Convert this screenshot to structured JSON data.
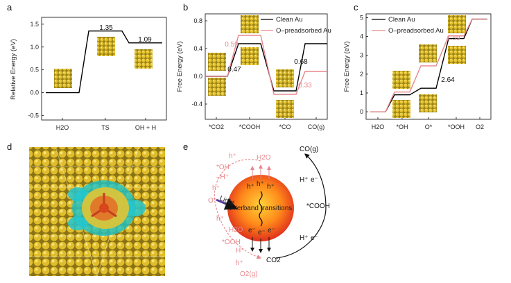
{
  "panel_labels": [
    "a",
    "b",
    "c",
    "d",
    "e"
  ],
  "chart_data": [
    {
      "id": "a",
      "type": "line",
      "ylabel": "Relative Energy (eV)",
      "ylim": [
        -0.6,
        1.65
      ],
      "yticks": [
        "-0.5",
        "0.0",
        "0.5",
        "1.0",
        "1.5"
      ],
      "categories": [
        "H2O",
        "TS",
        "OH + H"
      ],
      "series": [
        {
          "name": "Clean Au",
          "values": [
            0.0,
            1.35,
            1.09
          ],
          "color": "#000000"
        }
      ],
      "annotations": [
        "1.35",
        "1.09"
      ]
    },
    {
      "id": "b",
      "type": "line",
      "ylabel": "Free Energy (eV)",
      "ylim": [
        -0.62,
        0.9
      ],
      "yticks": [
        "-0.4",
        "0.0",
        "0.4",
        "0.8"
      ],
      "categories": [
        "*CO2",
        "*COOH",
        "*CO",
        "CO(g)"
      ],
      "legend": [
        "Clean Au",
        "O–preadsorbed Au"
      ],
      "series": [
        {
          "name": "Clean Au",
          "values": [
            0.0,
            0.47,
            -0.21,
            0.47
          ],
          "color": "#000000"
        },
        {
          "name": "O–preadsorbed Au",
          "values": [
            0.0,
            0.59,
            -0.26,
            0.07
          ],
          "color": "#e8868b"
        }
      ],
      "annotations": {
        "black_step1": "0.47",
        "pink_step1": "0.59",
        "black_step3": "0.68",
        "pink_step3": "0.33"
      }
    },
    {
      "id": "c",
      "type": "line",
      "ylabel": "Free Energy (eV)",
      "ylim": [
        -0.4,
        5.2
      ],
      "yticks": [
        "0",
        "1",
        "2",
        "3",
        "4",
        "5"
      ],
      "categories": [
        "H2O",
        "*OH",
        "O*",
        "*OOH",
        "O2"
      ],
      "legend": [
        "Clean Au",
        "O–preadsorbed Au"
      ],
      "series": [
        {
          "name": "Clean Au",
          "values": [
            0.0,
            0.9,
            1.25,
            3.89,
            4.92
          ],
          "color": "#000000"
        },
        {
          "name": "O–preadsorbed Au",
          "values": [
            0.0,
            1.05,
            2.44,
            4.03,
            4.92
          ],
          "color": "#e8868b"
        }
      ],
      "annotations": {
        "black_step3": "2.64",
        "pink_step3": "1.59"
      }
    }
  ],
  "mechanism": {
    "center_label": "Interband transitions",
    "light_label": "Light",
    "h_plus": "h⁺",
    "e_minus": "e⁻",
    "species_left": [
      "H2O",
      "*OH",
      "O*",
      "*OOH",
      "O2(g)"
    ],
    "species_right": [
      "CO2",
      "*COOH",
      "CO(g)"
    ],
    "left_tags": [
      "h⁺",
      "–H⁺",
      "h⁺",
      "h⁺",
      "H2O",
      "H⁺",
      "h⁺"
    ],
    "right_tags": [
      "H⁺",
      "e⁻",
      "H⁺",
      "e⁻"
    ]
  }
}
